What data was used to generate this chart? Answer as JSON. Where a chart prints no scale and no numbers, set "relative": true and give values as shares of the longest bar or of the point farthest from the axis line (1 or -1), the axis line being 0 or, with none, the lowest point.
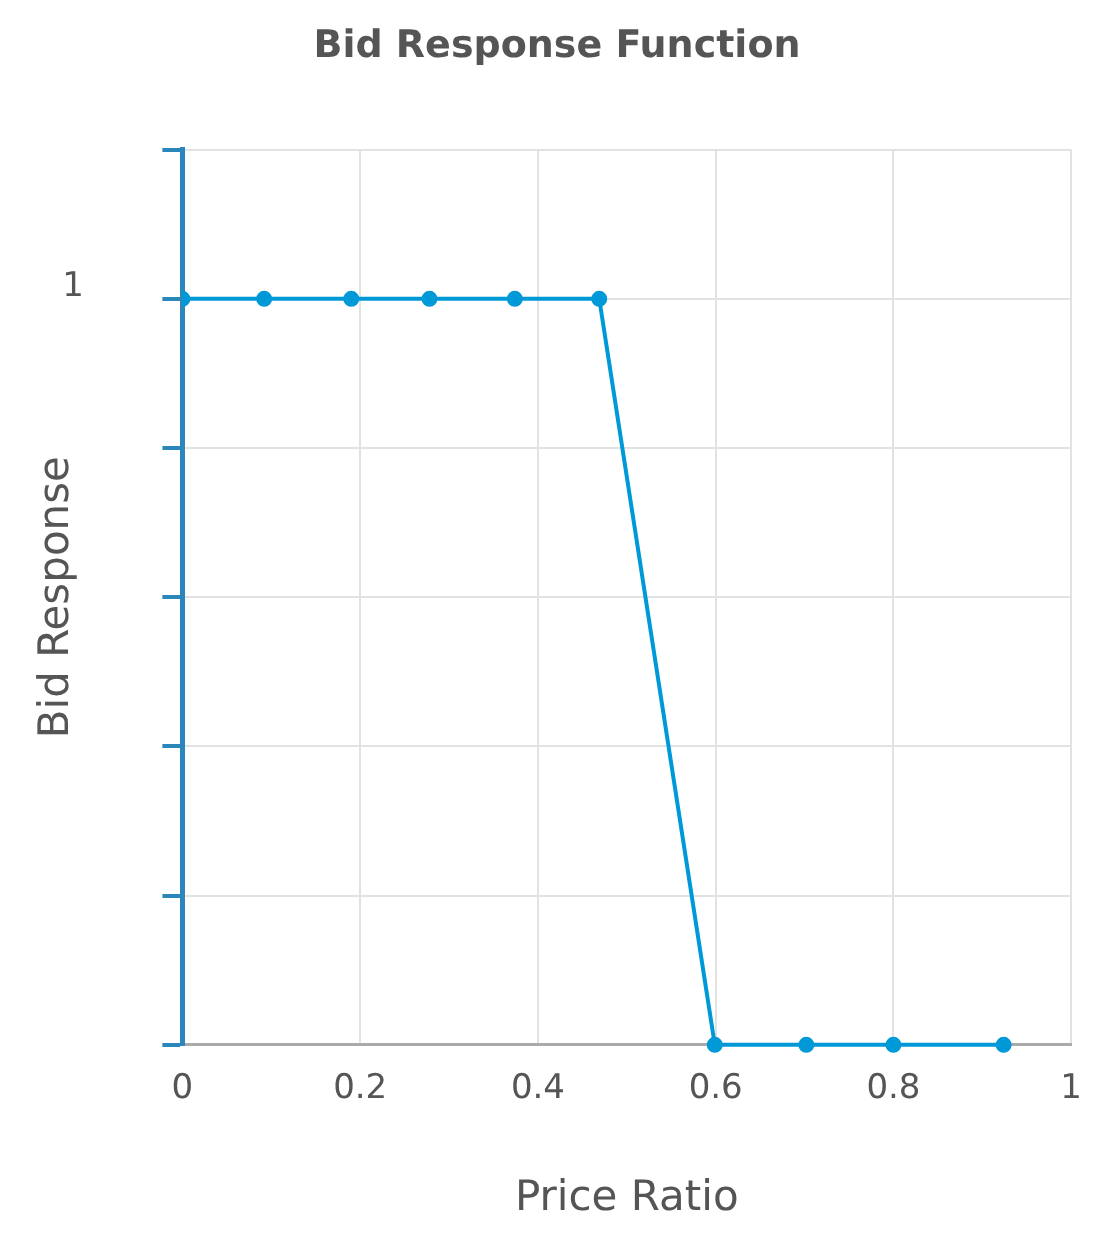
{
  "chart_data": {
    "type": "line",
    "title": "Bid Response Function",
    "xlabel": "Price Ratio",
    "ylabel": "Bid Response",
    "x": [
      0,
      0.092,
      0.19,
      0.278,
      0.374,
      0.469,
      0.599,
      0.702,
      0.8,
      0.924
    ],
    "series": [
      {
        "color": "#0099d8",
        "values": [
          1,
          1,
          1,
          1,
          1,
          1,
          0,
          0,
          0,
          0
        ]
      }
    ],
    "xlim": [
      0,
      1
    ],
    "xticks": [
      0,
      0.2,
      0.4,
      0.6,
      0.8,
      1
    ],
    "relative": true,
    "annotations": [
      "1"
    ],
    "grid": true,
    "legend": false,
    "marker": "circle",
    "line_style": "solid"
  }
}
